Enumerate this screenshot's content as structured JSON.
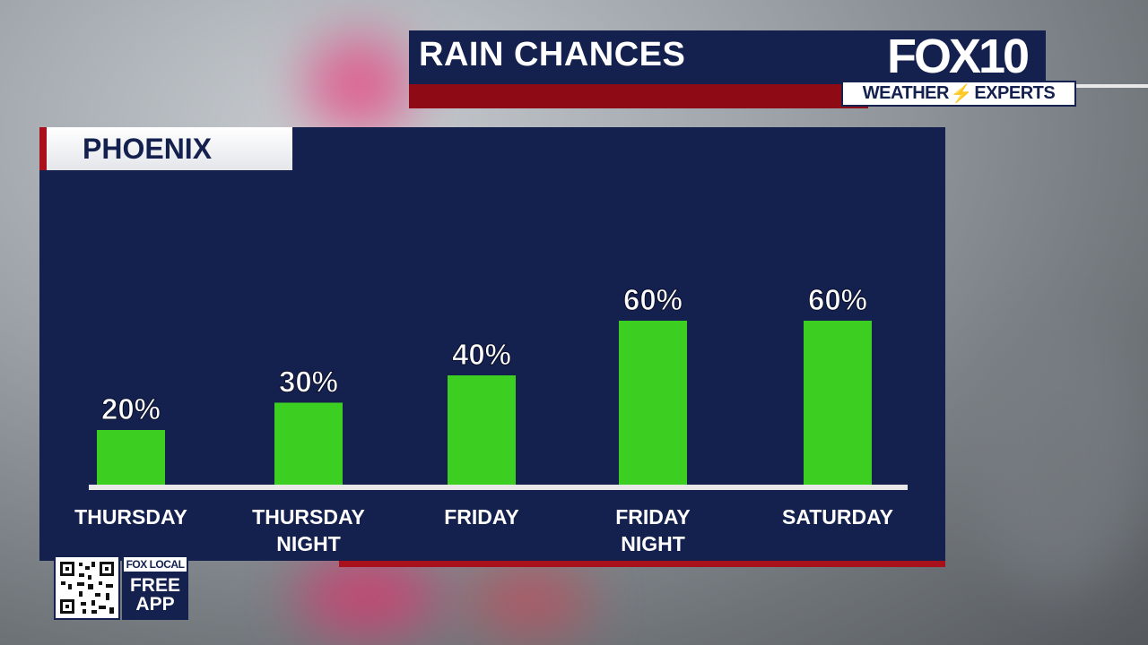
{
  "header": {
    "title": "RAIN CHANCES",
    "logo_main": "FOX10",
    "logo_sub_1": "WEATHER",
    "logo_sub_2": "EXPERTS"
  },
  "location": "PHOENIX",
  "app_promo": {
    "brand": "FOX LOCAL",
    "line1": "FREE",
    "line2": "APP"
  },
  "colors": {
    "navy": "#14204e",
    "red": "#a8101c",
    "bar_green": "#3ccf22"
  },
  "chart_data": {
    "type": "bar",
    "title": "RAIN CHANCES",
    "categories": [
      [
        "THURSDAY"
      ],
      [
        "THURSDAY",
        "NIGHT"
      ],
      [
        "FRIDAY"
      ],
      [
        "FRIDAY",
        "NIGHT"
      ],
      [
        "SATURDAY"
      ]
    ],
    "values": [
      20,
      30,
      40,
      60,
      60
    ],
    "value_labels": [
      "20%",
      "30%",
      "40%",
      "60%",
      "60%"
    ],
    "unit": "%",
    "ylim": [
      0,
      100
    ],
    "grid": false,
    "legend": "none"
  }
}
